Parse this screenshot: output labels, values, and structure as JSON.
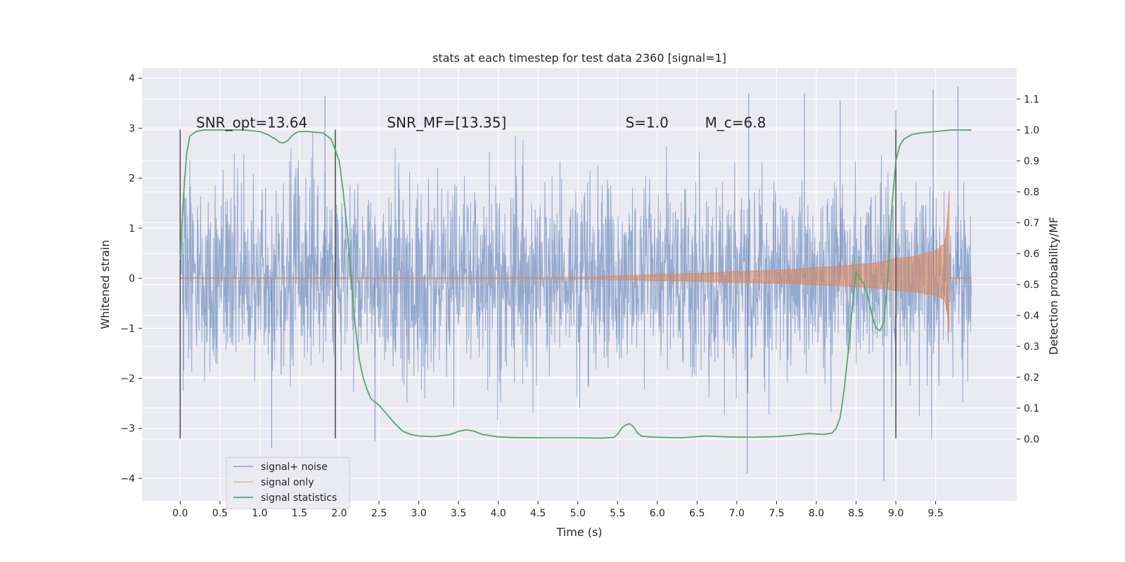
{
  "chart_data": {
    "type": "line",
    "title": "stats at each timestep for test data 2360 [signal=1]",
    "xlabel": "Time (s)",
    "ylabel": "Whitened strain",
    "y2label": "Detection probability/MF",
    "xlim": [
      -0.48,
      10.52
    ],
    "ylim": [
      -4.45,
      4.2
    ],
    "y2lim": [
      -0.2,
      1.2
    ],
    "xticks": [
      0.0,
      0.5,
      1.0,
      1.5,
      2.0,
      2.5,
      3.0,
      3.5,
      4.0,
      4.5,
      5.0,
      5.5,
      6.0,
      6.5,
      7.0,
      7.5,
      8.0,
      8.5,
      9.0,
      9.5
    ],
    "xtick_labels": [
      "0.0",
      "0.5",
      "1.0",
      "1.5",
      "2.0",
      "2.5",
      "3.0",
      "3.5",
      "4.0",
      "4.5",
      "5.0",
      "5.5",
      "6.0",
      "6.5",
      "7.0",
      "7.5",
      "8.0",
      "8.5",
      "9.0",
      "9.5"
    ],
    "yticks": [
      -4,
      -3,
      -2,
      -1,
      0,
      1,
      2,
      3,
      4
    ],
    "ytick_labels": [
      "−4",
      "−3",
      "−2",
      "−1",
      "0",
      "1",
      "2",
      "3",
      "4"
    ],
    "y2ticks": [
      0.0,
      0.1,
      0.2,
      0.3,
      0.4,
      0.5,
      0.6,
      0.7,
      0.8,
      0.9,
      1.0,
      1.1
    ],
    "y2tick_labels": [
      "0.0",
      "0.1",
      "0.2",
      "0.3",
      "0.4",
      "0.5",
      "0.6",
      "0.7",
      "0.8",
      "0.9",
      "1.0",
      "1.1"
    ],
    "grid": true,
    "legend_position": "lower-left",
    "vertical_markers": [
      0.0,
      1.95,
      9.0
    ],
    "vertical_marker_range": [
      -3.2,
      2.97
    ],
    "annotations": [
      {
        "text": "SNR_opt=13.64",
        "x": 0.2,
        "y": 3.1
      },
      {
        "text": "SNR_MF=[13.35]",
        "x": 2.6,
        "y": 3.1
      },
      {
        "text": "S=1.0",
        "x": 5.6,
        "y": 3.1
      },
      {
        "text": "M_c=6.8",
        "x": 6.6,
        "y": 3.1
      }
    ],
    "series": [
      {
        "name": "signal+ noise",
        "color": "#4c72b0",
        "axis": "left",
        "style": "noise",
        "x_range": [
          0.0,
          9.95
        ],
        "band_typical": [
          -1.7,
          1.7
        ],
        "band_extreme": [
          -4.05,
          3.83
        ],
        "peaks": [
          {
            "x": 1.82,
            "y": 3.65
          },
          {
            "x": 1.15,
            "y": -3.4
          },
          {
            "x": 7.15,
            "y": 3.7
          },
          {
            "x": 7.85,
            "y": 3.7
          },
          {
            "x": 9.47,
            "y": 3.78
          },
          {
            "x": 9.78,
            "y": 3.82
          },
          {
            "x": 8.85,
            "y": -4.05
          },
          {
            "x": 7.13,
            "y": -3.9
          },
          {
            "x": 9.0,
            "y": 3.35
          },
          {
            "x": 2.45,
            "y": -3.25
          },
          {
            "x": 8.3,
            "y": 3.55
          }
        ]
      },
      {
        "name": "signal only",
        "color": "#dd8452",
        "axis": "left",
        "style": "chirp",
        "x_range": [
          0.0,
          9.95
        ],
        "chirp_merger_x": 9.67,
        "envelope": [
          {
            "x": 0.0,
            "y": 0.01
          },
          {
            "x": 5.0,
            "y": 0.02
          },
          {
            "x": 5.5,
            "y": 0.05
          },
          {
            "x": 6.0,
            "y": 0.08
          },
          {
            "x": 7.0,
            "y": 0.14
          },
          {
            "x": 8.0,
            "y": 0.22
          },
          {
            "x": 8.5,
            "y": 0.28
          },
          {
            "x": 9.0,
            "y": 0.4
          },
          {
            "x": 9.4,
            "y": 0.52
          },
          {
            "x": 9.6,
            "y": 0.68
          },
          {
            "x": 9.67,
            "y": 1.75
          }
        ]
      },
      {
        "name": "signal statistics",
        "color": "#55a868",
        "axis": "right",
        "x": [
          0.0,
          0.04,
          0.08,
          0.12,
          0.2,
          0.3,
          0.5,
          0.8,
          1.0,
          1.1,
          1.2,
          1.25,
          1.3,
          1.35,
          1.4,
          1.45,
          1.5,
          1.6,
          1.8,
          1.9,
          2.0,
          2.05,
          2.1,
          2.15,
          2.2,
          2.25,
          2.3,
          2.35,
          2.4,
          2.45,
          2.5,
          2.6,
          2.7,
          2.8,
          2.9,
          3.0,
          3.2,
          3.4,
          3.5,
          3.6,
          3.7,
          3.8,
          4.0,
          4.2,
          4.5,
          5.0,
          5.3,
          5.45,
          5.5,
          5.55,
          5.6,
          5.65,
          5.7,
          5.75,
          5.8,
          5.9,
          6.0,
          6.3,
          6.6,
          6.9,
          7.2,
          7.5,
          7.7,
          7.9,
          8.1,
          8.2,
          8.25,
          8.3,
          8.35,
          8.4,
          8.45,
          8.5,
          8.55,
          8.6,
          8.65,
          8.7,
          8.75,
          8.8,
          8.85,
          8.9,
          8.95,
          9.0,
          9.05,
          9.1,
          9.2,
          9.3,
          9.5,
          9.7,
          9.95
        ],
        "y": [
          0.58,
          0.78,
          0.92,
          0.98,
          0.995,
          1.0,
          1.0,
          1.0,
          0.995,
          0.985,
          0.97,
          0.96,
          0.958,
          0.965,
          0.98,
          0.99,
          0.995,
          0.995,
          0.99,
          0.97,
          0.9,
          0.8,
          0.68,
          0.52,
          0.37,
          0.26,
          0.2,
          0.16,
          0.13,
          0.12,
          0.11,
          0.08,
          0.05,
          0.025,
          0.015,
          0.01,
          0.008,
          0.015,
          0.025,
          0.03,
          0.025,
          0.015,
          0.007,
          0.005,
          0.004,
          0.004,
          0.003,
          0.005,
          0.015,
          0.035,
          0.045,
          0.05,
          0.04,
          0.02,
          0.01,
          0.007,
          0.006,
          0.004,
          0.01,
          0.007,
          0.006,
          0.008,
          0.012,
          0.018,
          0.015,
          0.02,
          0.035,
          0.07,
          0.16,
          0.28,
          0.42,
          0.54,
          0.52,
          0.5,
          0.46,
          0.4,
          0.36,
          0.35,
          0.38,
          0.52,
          0.75,
          0.9,
          0.95,
          0.97,
          0.985,
          0.99,
          0.995,
          1.0,
          1.0
        ]
      }
    ]
  }
}
